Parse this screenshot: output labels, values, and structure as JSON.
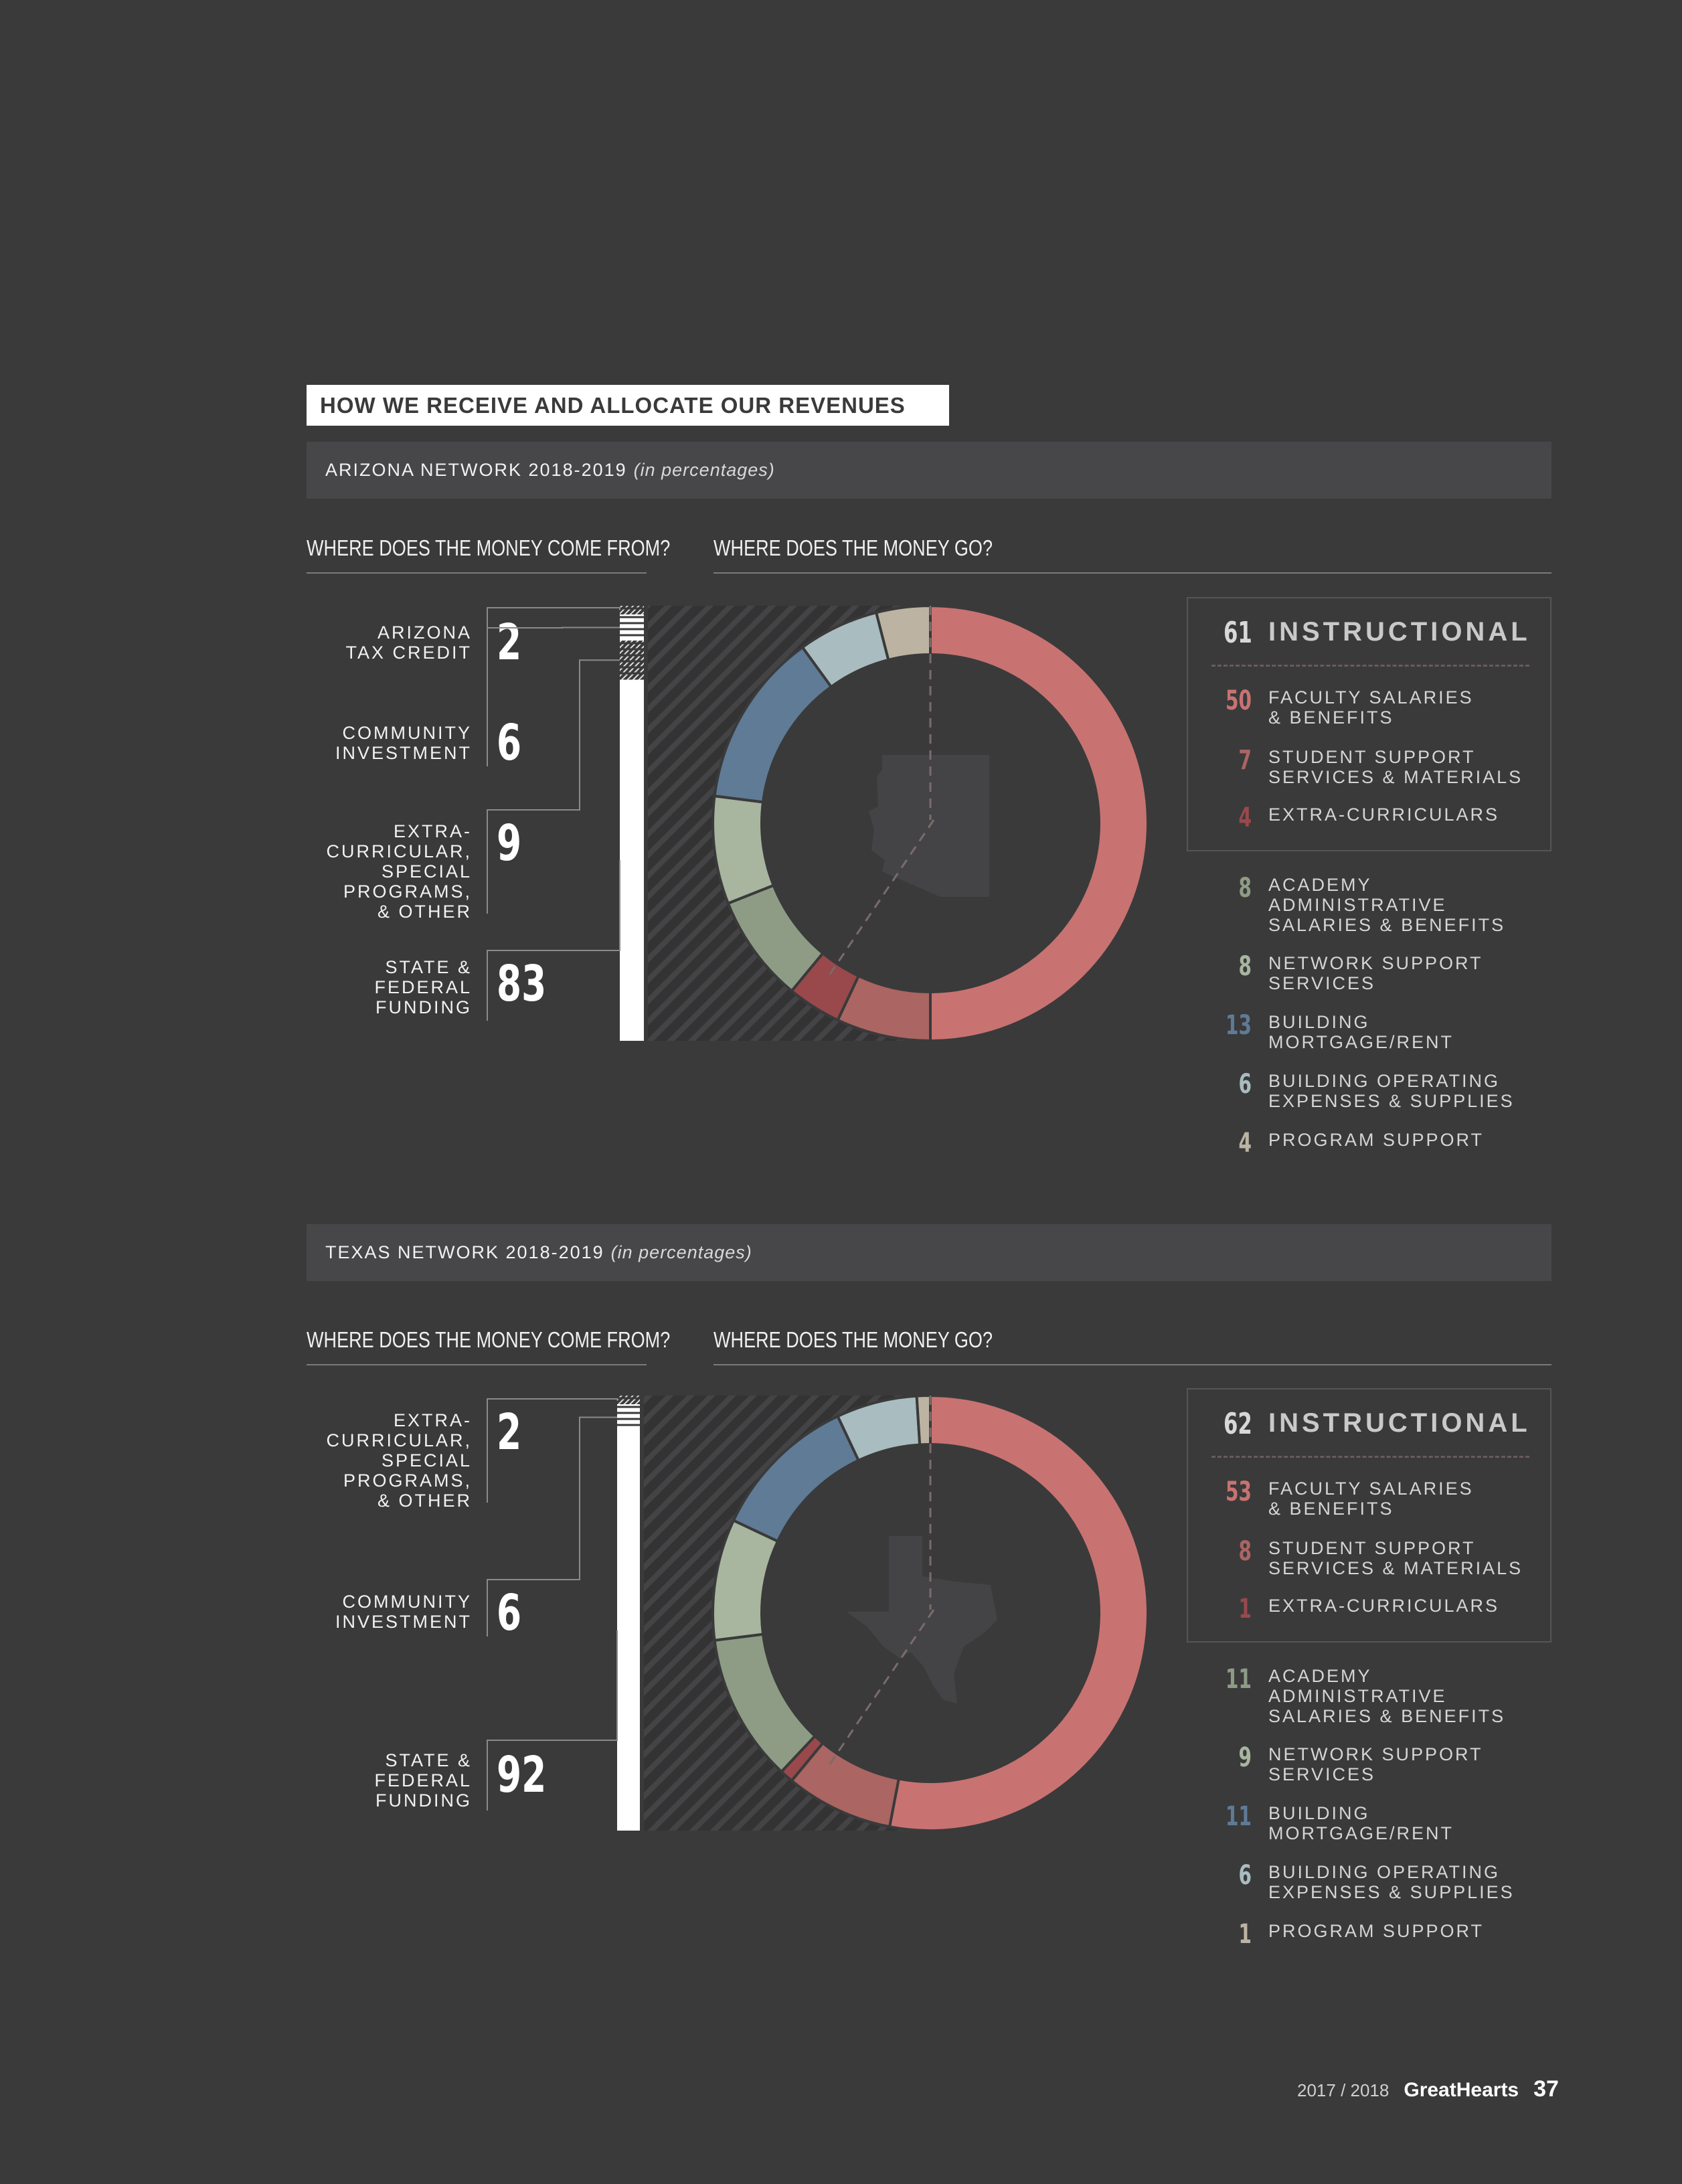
{
  "title": "HOW WE RECEIVE AND ALLOCATE OUR REVENUES",
  "questions": {
    "come_from": "WHERE DOES THE MONEY COME FROM?",
    "go": "WHERE DOES THE MONEY GO?"
  },
  "colors": {
    "faculty": "#c87371",
    "student": "#ab6562",
    "extra": "#99494b",
    "academy": "#8e9c85",
    "network": "#a8b59f",
    "building": "#5f7b96",
    "operating": "#a9bcbf",
    "program": "#bcb3a2"
  },
  "footer": {
    "year": "2017 / 2018",
    "brand": "GreatHearts",
    "page": "37"
  },
  "arizona": {
    "heading": "ARIZONA NETWORK 2018-2019",
    "heading_sub": "(in percentages)",
    "sources": [
      {
        "label": "ARIZONA TAX CREDIT",
        "value": "2"
      },
      {
        "label": "COMMUNITY INVESTMENT",
        "value": "6"
      },
      {
        "label": "EXTRA-CURRICULAR, SPECIAL PROGRAMS, & OTHER",
        "value": "9"
      },
      {
        "label": "STATE & FEDERAL FUNDING",
        "value": "83"
      }
    ],
    "instructional": {
      "value": "61",
      "label": "INSTRUCTIONAL"
    },
    "legend": [
      {
        "value": "50",
        "label": "FACULTY SALARIES & BENEFITS",
        "color_key": "faculty"
      },
      {
        "value": "7",
        "label": "STUDENT SUPPORT SERVICES & MATERIALS",
        "color_key": "student"
      },
      {
        "value": "4",
        "label": "EXTRA-CURRICULARS",
        "color_key": "extra"
      },
      {
        "value": "8",
        "label": "ACADEMY ADMINISTRATIVE SALARIES & BENEFITS",
        "color_key": "academy"
      },
      {
        "value": "8",
        "label": "NETWORK SUPPORT SERVICES",
        "color_key": "network"
      },
      {
        "value": "13",
        "label": "BUILDING MORTGAGE/RENT",
        "color_key": "building"
      },
      {
        "value": "6",
        "label": "BUILDING OPERATING EXPENSES & SUPPLIES",
        "color_key": "operating"
      },
      {
        "value": "4",
        "label": "PROGRAM SUPPORT",
        "color_key": "program"
      }
    ]
  },
  "texas": {
    "heading": "TEXAS NETWORK 2018-2019",
    "heading_sub": "(in percentages)",
    "sources": [
      {
        "label": "EXTRA-CURRICULAR, SPECIAL PROGRAMS, & OTHER",
        "value": "2"
      },
      {
        "label": "COMMUNITY INVESTMENT",
        "value": "6"
      },
      {
        "label": "STATE & FEDERAL FUNDING",
        "value": "92"
      }
    ],
    "instructional": {
      "value": "62",
      "label": "INSTRUCTIONAL"
    },
    "legend": [
      {
        "value": "53",
        "label": "FACULTY SALARIES & BENEFITS",
        "color_key": "faculty"
      },
      {
        "value": "8",
        "label": "STUDENT SUPPORT SERVICES & MATERIALS",
        "color_key": "student"
      },
      {
        "value": "1",
        "label": "EXTRA-CURRICULARS",
        "color_key": "extra"
      },
      {
        "value": "11",
        "label": "ACADEMY ADMINISTRATIVE SALARIES & BENEFITS",
        "color_key": "academy"
      },
      {
        "value": "9",
        "label": "NETWORK SUPPORT SERVICES",
        "color_key": "network"
      },
      {
        "value": "11",
        "label": "BUILDING MORTGAGE/RENT",
        "color_key": "building"
      },
      {
        "value": "6",
        "label": "BUILDING OPERATING EXPENSES & SUPPLIES",
        "color_key": "operating"
      },
      {
        "value": "1",
        "label": "PROGRAM SUPPORT",
        "color_key": "program"
      }
    ]
  },
  "chart_data": [
    {
      "type": "pie",
      "donut": true,
      "categories": [
        "FACULTY SALARIES & BENEFITS",
        "STUDENT SUPPORT SERVICES & MATERIALS",
        "EXTRA-CURRICULARS",
        "ACADEMY ADMINISTRATIVE SALARIES & BENEFITS",
        "NETWORK SUPPORT SERVICES",
        "BUILDING MORTGAGE/RENT",
        "BUILDING OPERATING EXPENSES & SUPPLIES",
        "PROGRAM SUPPORT"
      ],
      "values": [
        50,
        7,
        4,
        8,
        8,
        13,
        6,
        4
      ],
      "title": "ARIZONA NETWORK 2018-2019"
    },
    {
      "type": "bar",
      "stacked": true,
      "categories": [
        "ARIZONA TAX CREDIT",
        "COMMUNITY INVESTMENT",
        "EXTRA-CURRICULAR, SPECIAL PROGRAMS, & OTHER",
        "STATE & FEDERAL FUNDING"
      ],
      "values": [
        2,
        6,
        9,
        83
      ],
      "title": "ARIZONA NETWORK 2018-2019"
    },
    {
      "type": "pie",
      "donut": true,
      "categories": [
        "FACULTY SALARIES & BENEFITS",
        "STUDENT SUPPORT SERVICES & MATERIALS",
        "EXTRA-CURRICULARS",
        "ACADEMY ADMINISTRATIVE SALARIES & BENEFITS",
        "NETWORK SUPPORT SERVICES",
        "BUILDING MORTGAGE/RENT",
        "BUILDING OPERATING EXPENSES & SUPPLIES",
        "PROGRAM SUPPORT"
      ],
      "values": [
        53,
        8,
        1,
        11,
        9,
        11,
        6,
        1
      ],
      "title": "TEXAS NETWORK 2018-2019"
    },
    {
      "type": "bar",
      "stacked": true,
      "categories": [
        "EXTRA-CURRICULAR, SPECIAL PROGRAMS, & OTHER",
        "COMMUNITY INVESTMENT",
        "STATE & FEDERAL FUNDING"
      ],
      "values": [
        2,
        6,
        92
      ],
      "title": "TEXAS NETWORK 2018-2019"
    }
  ]
}
